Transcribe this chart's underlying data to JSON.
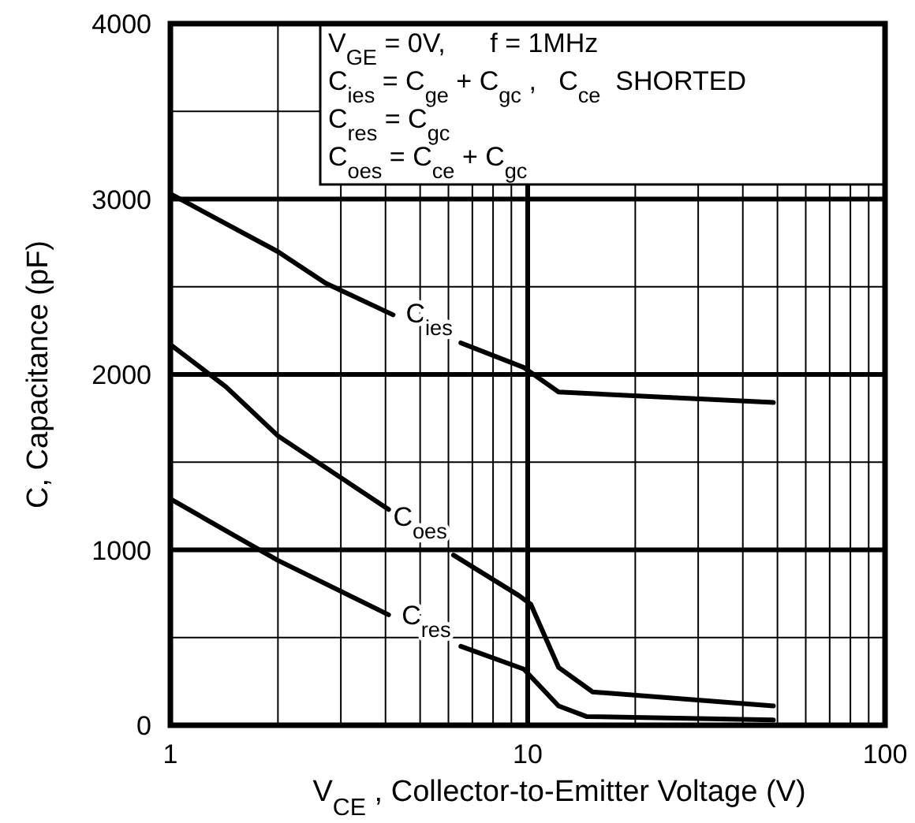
{
  "chart_data": {
    "type": "line",
    "xlabel": "V$_{CE}$ , Collector-to-Emitter Voltage (V)",
    "ylabel": "C, Capacitance (pF)",
    "log": "x",
    "xlim": [
      1,
      100
    ],
    "xticks": [
      1,
      {
        "value": 2,
        "label": null
      },
      {
        "value": 3,
        "label": null
      },
      {
        "value": 4,
        "label": null
      },
      {
        "value": 5,
        "label": null
      },
      {
        "value": 6,
        "label": null
      },
      {
        "value": 7,
        "label": null
      },
      {
        "value": 8,
        "label": null
      },
      {
        "value": 9,
        "label": null
      },
      10,
      {
        "value": 20,
        "label": null
      },
      {
        "value": 30,
        "label": null
      },
      {
        "value": 40,
        "label": null
      },
      {
        "value": 50,
        "label": null
      },
      {
        "value": 60,
        "label": null
      },
      {
        "value": 70,
        "label": null
      },
      {
        "value": 80,
        "label": null
      },
      {
        "value": 90,
        "label": null
      },
      100
    ],
    "ylim": [
      0,
      4000
    ],
    "yticks": [
      0,
      {
        "value": 500,
        "label": null
      },
      1000,
      {
        "value": 1500,
        "label": null
      },
      2000,
      {
        "value": 2500,
        "label": null
      },
      3000,
      {
        "value": 3500,
        "label": null
      },
      4000
    ],
    "grid": true,
    "line_style": "solid",
    "marker": "none",
    "series": [
      {
        "name": "C$_{ies}$",
        "color": "#000000",
        "x": [
          1,
          2,
          2.72,
          4.2,
          5.3,
          6.5,
          9.75,
          12.2,
          48.7
        ],
        "values": [
          3030,
          2700,
          2520,
          2340,
          null,
          2180,
          2040,
          1900,
          1840
        ]
      },
      {
        "name": "C$_{oes}$",
        "color": "#000000",
        "x": [
          1,
          1.43,
          2,
          4.08,
          5.0,
          6.2,
          9.44,
          10.2,
          12.2,
          15.2,
          48.7
        ],
        "values": [
          2170,
          1930,
          1650,
          1230,
          null,
          970,
          740,
          690,
          330,
          190,
          110
        ]
      },
      {
        "name": "C$_{res}$",
        "color": "#000000",
        "x": [
          1,
          2,
          4.08,
          5.2,
          6.5,
          9.75,
          12.2,
          14.6,
          48.7
        ],
        "values": [
          1290,
          940,
          630,
          null,
          450,
          320,
          110,
          50,
          30
        ]
      }
    ],
    "annotations": [
      "V$_{GE}$ = 0V,      f = 1MHz",
      "C$_{ies}$ = C$_{ge}$ + C$_{gc}$ ,   C$_{ce}$  SHORTED",
      "C$_{res}$ = C$_{gc}$",
      "C$_{oes}$ = C$_{ce}$ + C$_{gc}$"
    ]
  }
}
